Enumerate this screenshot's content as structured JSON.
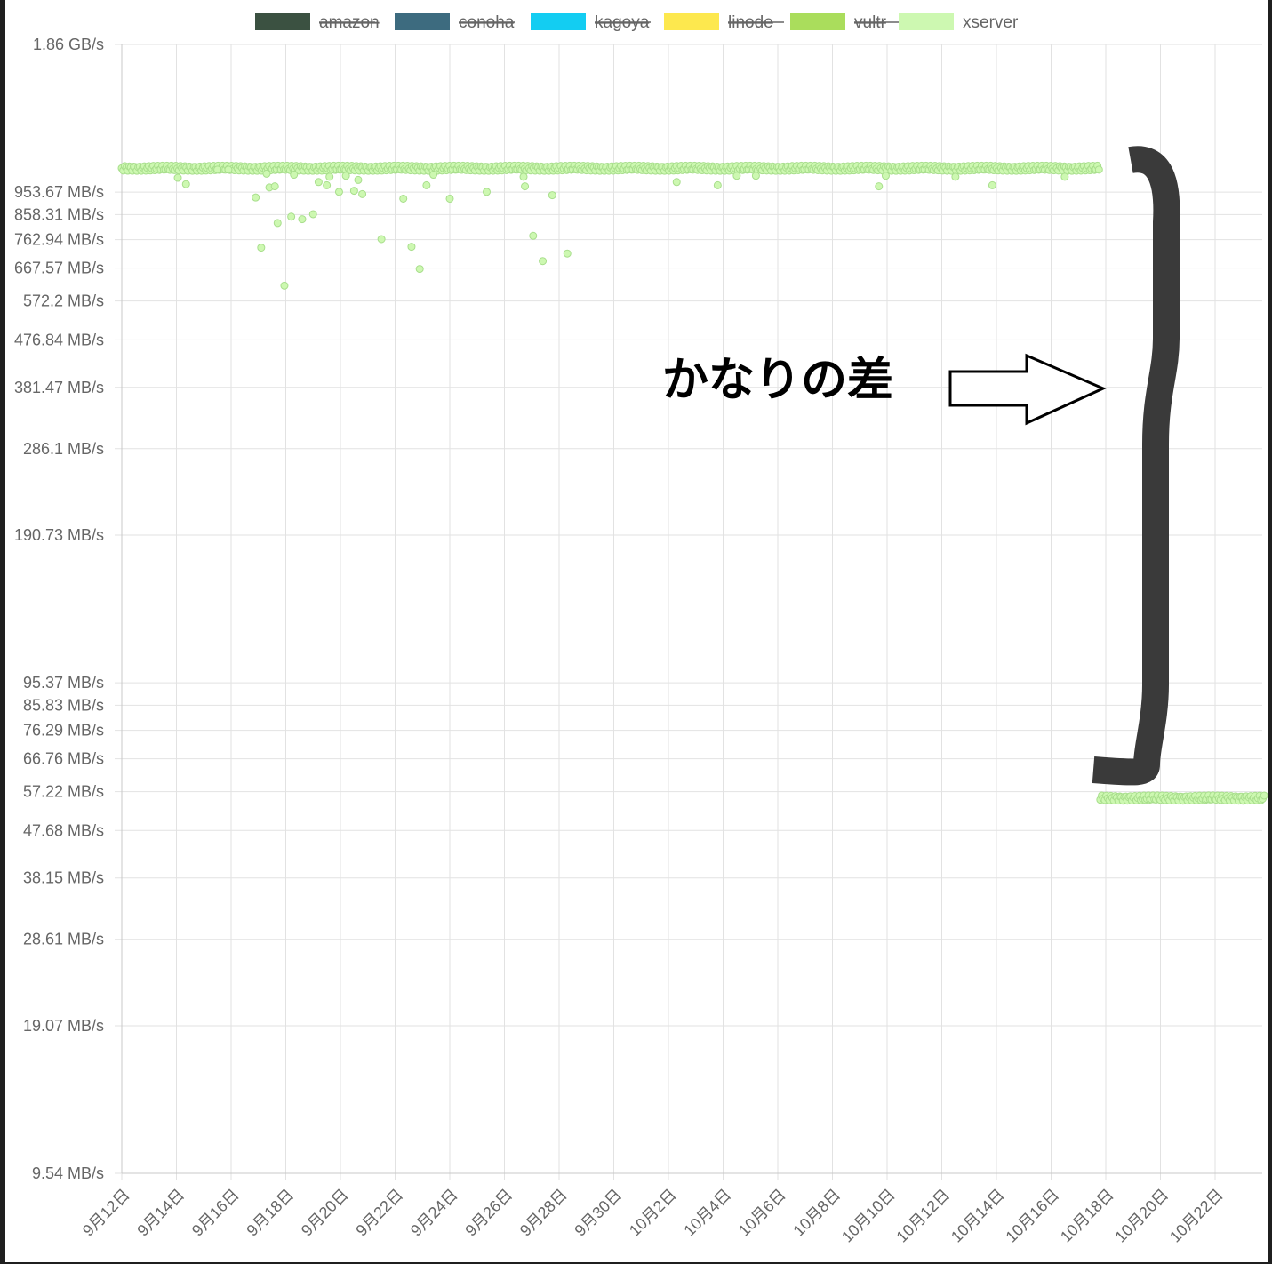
{
  "chart_data": {
    "type": "scatter",
    "y_scale": "log",
    "legend": {
      "position": "top",
      "items": [
        {
          "name": "amazon",
          "color": "#3b5141",
          "hidden": true
        },
        {
          "name": "conoha",
          "color": "#3d6b7f",
          "hidden": true
        },
        {
          "name": "kagoya",
          "color": "#13cdf2",
          "hidden": true
        },
        {
          "name": "linode",
          "color": "#fde84e",
          "hidden": true
        },
        {
          "name": "vultr",
          "color": "#aadd5c",
          "hidden": true
        },
        {
          "name": "xserver",
          "color": "#cdf8b1",
          "hidden": false
        }
      ]
    },
    "y_ticks": [
      {
        "label": "1.86 GB/s",
        "value": 1907.35
      },
      {
        "label": "953.67 MB/s",
        "value": 953.67
      },
      {
        "label": "858.31 MB/s",
        "value": 858.31
      },
      {
        "label": "762.94 MB/s",
        "value": 762.94
      },
      {
        "label": "667.57 MB/s",
        "value": 667.57
      },
      {
        "label": "572.2 MB/s",
        "value": 572.2
      },
      {
        "label": "476.84 MB/s",
        "value": 476.84
      },
      {
        "label": "381.47 MB/s",
        "value": 381.47
      },
      {
        "label": "286.1 MB/s",
        "value": 286.1
      },
      {
        "label": "190.73 MB/s",
        "value": 190.73
      },
      {
        "label": "95.37 MB/s",
        "value": 95.37
      },
      {
        "label": "85.83 MB/s",
        "value": 85.83
      },
      {
        "label": "76.29 MB/s",
        "value": 76.29
      },
      {
        "label": "66.76 MB/s",
        "value": 66.76
      },
      {
        "label": "57.22 MB/s",
        "value": 57.22
      },
      {
        "label": "47.68 MB/s",
        "value": 47.68
      },
      {
        "label": "38.15 MB/s",
        "value": 38.15
      },
      {
        "label": "28.61 MB/s",
        "value": 28.61
      },
      {
        "label": "19.07 MB/s",
        "value": 19.07
      },
      {
        "label": "9.54 MB/s",
        "value": 9.54
      }
    ],
    "y_range_mbps": [
      9.54,
      1907.35
    ],
    "x_ticks": [
      "9月12日",
      "9月14日",
      "9月16日",
      "9月18日",
      "9月20日",
      "9月22日",
      "9月24日",
      "9月26日",
      "9月28日",
      "9月30日",
      "10月2日",
      "10月4日",
      "10月6日",
      "10月8日",
      "10月10日",
      "10月12日",
      "10月14日",
      "10月16日",
      "10月18日",
      "10月20日",
      "10月22日"
    ],
    "x_range_days": [
      0,
      41.8
    ],
    "grid": true,
    "series": [
      {
        "name": "xserver",
        "color": "#cdf8b1",
        "border_color": "#a8de8c",
        "baseline_segments": [
          {
            "x_start": 0,
            "x_end": 35.8,
            "y": 1080
          },
          {
            "x_start": 35.8,
            "x_end": 41.8,
            "y": 56.2
          }
        ],
        "outliers": [
          {
            "x": 2.05,
            "y": 1020
          },
          {
            "x": 2.35,
            "y": 990
          },
          {
            "x": 3.5,
            "y": 1060
          },
          {
            "x": 3.9,
            "y": 1060
          },
          {
            "x": 4.9,
            "y": 930
          },
          {
            "x": 5.1,
            "y": 735
          },
          {
            "x": 5.3,
            "y": 1040
          },
          {
            "x": 5.4,
            "y": 975
          },
          {
            "x": 5.6,
            "y": 980
          },
          {
            "x": 5.7,
            "y": 825
          },
          {
            "x": 5.95,
            "y": 615
          },
          {
            "x": 6.2,
            "y": 850
          },
          {
            "x": 6.3,
            "y": 1035
          },
          {
            "x": 6.6,
            "y": 840
          },
          {
            "x": 7.0,
            "y": 860
          },
          {
            "x": 7.2,
            "y": 1000
          },
          {
            "x": 7.5,
            "y": 985
          },
          {
            "x": 7.6,
            "y": 1025
          },
          {
            "x": 7.95,
            "y": 955
          },
          {
            "x": 8.2,
            "y": 1030
          },
          {
            "x": 8.5,
            "y": 960
          },
          {
            "x": 8.65,
            "y": 1010
          },
          {
            "x": 8.8,
            "y": 945
          },
          {
            "x": 9.5,
            "y": 765
          },
          {
            "x": 10.3,
            "y": 925
          },
          {
            "x": 10.6,
            "y": 738
          },
          {
            "x": 10.9,
            "y": 665
          },
          {
            "x": 11.15,
            "y": 985
          },
          {
            "x": 11.4,
            "y": 1035
          },
          {
            "x": 12.0,
            "y": 925
          },
          {
            "x": 13.35,
            "y": 955
          },
          {
            "x": 14.7,
            "y": 1025
          },
          {
            "x": 14.75,
            "y": 980
          },
          {
            "x": 15.05,
            "y": 777
          },
          {
            "x": 15.4,
            "y": 690
          },
          {
            "x": 15.75,
            "y": 940
          },
          {
            "x": 16.3,
            "y": 715
          },
          {
            "x": 20.3,
            "y": 1000
          },
          {
            "x": 21.8,
            "y": 985
          },
          {
            "x": 22.5,
            "y": 1030
          },
          {
            "x": 23.2,
            "y": 1030
          },
          {
            "x": 27.7,
            "y": 980
          },
          {
            "x": 27.95,
            "y": 1030
          },
          {
            "x": 30.5,
            "y": 1025
          },
          {
            "x": 31.85,
            "y": 985
          },
          {
            "x": 34.5,
            "y": 1025
          }
        ]
      }
    ]
  },
  "annotation": {
    "text": "かなりの差"
  }
}
